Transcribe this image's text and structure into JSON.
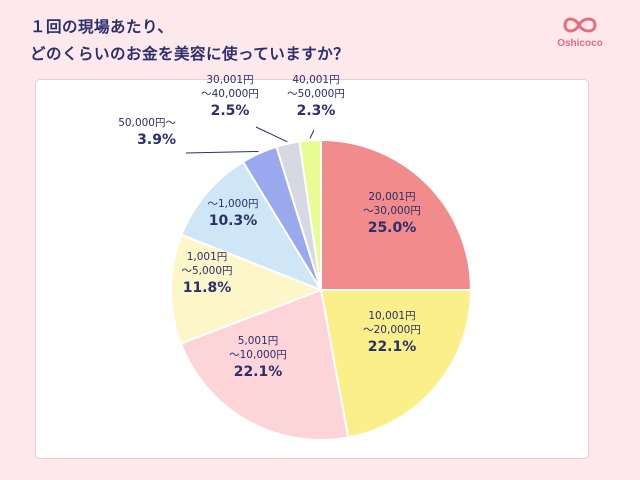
{
  "header": {
    "title_line1": "１回の現場あたり、",
    "title_line2": "どのくらいのお金を美容に使っていますか？"
  },
  "logo": {
    "icon": "oshicoco-logo-icon",
    "text": "Oshicoco",
    "color": "#e46d7e"
  },
  "chart_data": {
    "type": "pie",
    "title": "１回の現場あたり、どのくらいのお金を美容に使っていますか？",
    "start_angle": "12 o'clock",
    "direction": "clockwise",
    "legend": "none (labels on slices)",
    "slices": [
      {
        "label_lines": [
          "20,001円",
          "～30,000円"
        ],
        "value": 25.0,
        "value_text": "25.0%",
        "color": "#f28b8b"
      },
      {
        "label_lines": [
          "10,001円",
          "～20,000円"
        ],
        "value": 22.1,
        "value_text": "22.1%",
        "color": "#fbef8a"
      },
      {
        "label_lines": [
          "5,001円",
          "～10,000円"
        ],
        "value": 22.1,
        "value_text": "22.1%",
        "color": "#fdd5d8"
      },
      {
        "label_lines": [
          "1,001円",
          "～5,000円"
        ],
        "value": 11.8,
        "value_text": "11.8%",
        "color": "#fdf6c9"
      },
      {
        "label_lines": [
          "～1,000円"
        ],
        "value": 10.3,
        "value_text": "10.3%",
        "color": "#cfe6f6"
      },
      {
        "label_lines": [
          "50,000円～"
        ],
        "value": 3.9,
        "value_text": "3.9%",
        "color": "#9aa8ee"
      },
      {
        "label_lines": [
          "30,001円",
          "～40,000円"
        ],
        "value": 2.5,
        "value_text": "2.5%",
        "color": "#d6d9e2"
      },
      {
        "label_lines": [
          "40,001円",
          "～50,000円"
        ],
        "value": 2.3,
        "value_text": "2.3%",
        "color": "#e9fb93"
      }
    ]
  }
}
